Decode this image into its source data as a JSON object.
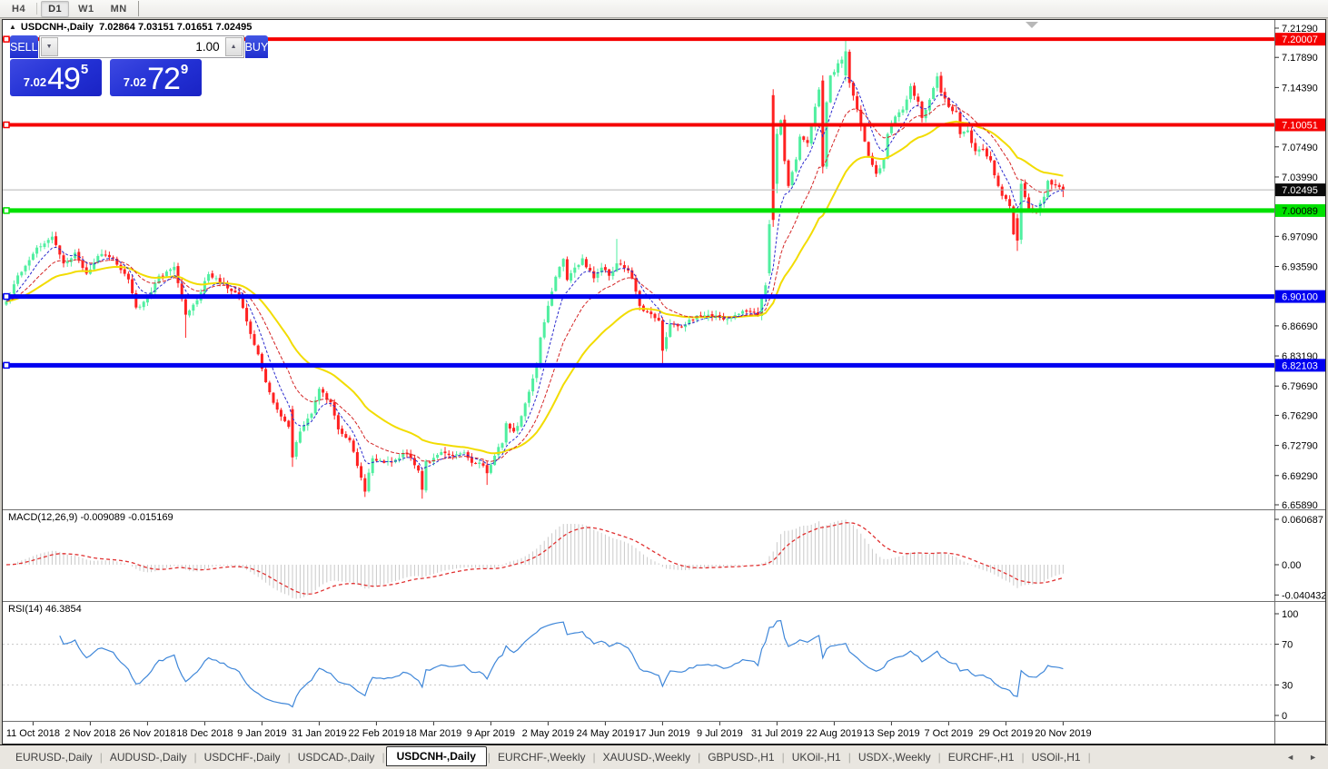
{
  "toolbar": {
    "timeframes": [
      {
        "label": "H4",
        "active": false
      },
      {
        "label": "D1",
        "active": true
      },
      {
        "label": "W1",
        "active": false
      },
      {
        "label": "MN",
        "active": false
      }
    ]
  },
  "chart_header": {
    "collapse_icon": "▲",
    "title": "USDCNH-,Daily",
    "ohlc": "7.02864 7.03151 7.01651 7.02495"
  },
  "trade_panel": {
    "sell_label": "SELL",
    "buy_label": "BUY",
    "volume": "1.00",
    "volume_dec_icon": "▼",
    "volume_inc_icon": "▲",
    "sell_price": {
      "prefix": "7.02",
      "big": "49",
      "sup": "5"
    },
    "buy_price": {
      "prefix": "7.02",
      "big": "72",
      "sup": "9"
    }
  },
  "indicators": {
    "macd_label": "MACD(12,26,9) -0.009089 -0.015169",
    "rsi_label": "RSI(14) 46.3854"
  },
  "tabs": {
    "scroll_left": "◄",
    "scroll_right": "►",
    "items": [
      {
        "label": "EURUSD-,Daily",
        "active": false
      },
      {
        "label": "AUDUSD-,Daily",
        "active": false
      },
      {
        "label": "USDCHF-,Daily",
        "active": false
      },
      {
        "label": "USDCAD-,Daily",
        "active": false
      },
      {
        "label": "USDCNH-,Daily",
        "active": true
      },
      {
        "label": "EURCHF-,Weekly",
        "active": false
      },
      {
        "label": "XAUUSD-,Weekly",
        "active": false
      },
      {
        "label": "GBPUSD-,H1",
        "active": false
      },
      {
        "label": "UKOil-,H1",
        "active": false
      },
      {
        "label": "USDX-,Weekly",
        "active": false
      },
      {
        "label": "EURCHF-,H1",
        "active": false
      },
      {
        "label": "USOil-,H1",
        "active": false
      }
    ]
  },
  "chart_data": {
    "type": "candlestick",
    "symbol": "USDCNH",
    "timeframe": "Daily",
    "title": "USDCNH-,Daily",
    "ohlc_current": {
      "open": 7.02864,
      "high": 7.03151,
      "low": 7.01651,
      "close": 7.02495
    },
    "price_range": {
      "top": 7.2129,
      "bottom": 6.6589
    },
    "colors": {
      "bull": "#50efa0",
      "bear": "#ff2121",
      "background": "#ffffff",
      "ma_fast": "#2a2ace",
      "ma_mid": "#d42525",
      "ma_slow": "#f2dc00",
      "macd_histogram": "#c9c9c9",
      "macd_signal": "#e03030",
      "rsi_line": "#3f87d9",
      "current_price_line": "#b4b4b4",
      "current_price_label_bg": "#0a0a0a"
    },
    "y_axis_ticks": [
      {
        "label": "7.21290",
        "value": 7.2129,
        "hidden": false
      },
      {
        "label": "7.17890",
        "value": 7.1789,
        "hidden": false
      },
      {
        "label": "7.14390",
        "value": 7.1439,
        "hidden": false
      },
      {
        "label": "7.10890",
        "value": 7.1089,
        "hidden": true
      },
      {
        "label": "7.07490",
        "value": 7.0749,
        "hidden": false
      },
      {
        "label": "7.03990",
        "value": 7.0399,
        "hidden": false
      },
      {
        "label": "7.00490",
        "value": 7.0049,
        "hidden": true
      },
      {
        "label": "6.97090",
        "value": 6.9709,
        "hidden": false
      },
      {
        "label": "6.93590",
        "value": 6.9359,
        "hidden": false
      },
      {
        "label": "6.90090",
        "value": 6.9009,
        "hidden": true
      },
      {
        "label": "6.86690",
        "value": 6.8669,
        "hidden": false
      },
      {
        "label": "6.83190",
        "value": 6.8319,
        "hidden": false
      },
      {
        "label": "6.79690",
        "value": 6.7969,
        "hidden": false
      },
      {
        "label": "6.76290",
        "value": 6.7629,
        "hidden": false
      },
      {
        "label": "6.72790",
        "value": 6.7279,
        "hidden": false
      },
      {
        "label": "6.69290",
        "value": 6.6929,
        "hidden": false
      },
      {
        "label": "6.65890",
        "value": 6.6589,
        "hidden": false
      }
    ],
    "levels": [
      {
        "value": "7.20007",
        "price": 7.20007,
        "color": "#f50000",
        "label_fg": "#ffffff",
        "thickness": 4
      },
      {
        "value": "7.10051",
        "price": 7.10051,
        "color": "#f50000",
        "label_fg": "#ffffff",
        "thickness": 4
      },
      {
        "value": "7.00089",
        "price": 7.00089,
        "color": "#00e100",
        "label_fg": "#000000",
        "thickness": 5
      },
      {
        "value": "6.90100",
        "price": 6.901,
        "color": "#0000f0",
        "label_fg": "#ffffff",
        "thickness": 5
      },
      {
        "value": "6.82103",
        "price": 6.82103,
        "color": "#0000f0",
        "label_fg": "#ffffff",
        "thickness": 5
      }
    ],
    "current_price": {
      "value": "7.02495",
      "price": 7.02495
    },
    "x_axis_labels": [
      "11 Oct 2018",
      "2 Nov 2018",
      "26 Nov 2018",
      "18 Dec 2018",
      "9 Jan 2019",
      "31 Jan 2019",
      "22 Feb 2019",
      "18 Mar 2019",
      "9 Apr 2019",
      "2 May 2019",
      "24 May 2019",
      "17 Jun 2019",
      "9 Jul 2019",
      "31 Jul 2019",
      "22 Aug 2019",
      "13 Sep 2019",
      "7 Oct 2019",
      "29 Oct 2019",
      "20 Nov 2019"
    ],
    "x_label_first_candle": 7,
    "x_label_step": 15,
    "candles_total": 278,
    "close_anchors": [
      [
        0,
        6.895
      ],
      [
        3,
        6.925
      ],
      [
        7,
        6.952
      ],
      [
        12,
        6.972
      ],
      [
        15,
        6.938
      ],
      [
        18,
        6.952
      ],
      [
        21,
        6.928
      ],
      [
        25,
        6.952
      ],
      [
        28,
        6.944
      ],
      [
        32,
        6.92
      ],
      [
        34,
        6.887
      ],
      [
        37,
        6.9
      ],
      [
        40,
        6.923
      ],
      [
        44,
        6.934
      ],
      [
        47,
        6.878
      ],
      [
        50,
        6.895
      ],
      [
        53,
        6.928
      ],
      [
        57,
        6.915
      ],
      [
        61,
        6.9
      ],
      [
        63,
        6.872
      ],
      [
        66,
        6.832
      ],
      [
        69,
        6.788
      ],
      [
        71,
        6.77
      ],
      [
        74,
        6.748
      ],
      [
        75,
        6.714
      ],
      [
        76,
        6.73
      ],
      [
        77,
        6.745
      ],
      [
        80,
        6.765
      ],
      [
        82,
        6.793
      ],
      [
        85,
        6.777
      ],
      [
        87,
        6.748
      ],
      [
        90,
        6.732
      ],
      [
        93,
        6.692
      ],
      [
        94,
        6.676
      ],
      [
        96,
        6.714
      ],
      [
        99,
        6.706
      ],
      [
        102,
        6.712
      ],
      [
        105,
        6.72
      ],
      [
        108,
        6.7
      ],
      [
        109,
        6.678
      ],
      [
        110,
        6.708
      ],
      [
        113,
        6.716
      ],
      [
        115,
        6.72
      ],
      [
        118,
        6.716
      ],
      [
        120,
        6.72
      ],
      [
        122,
        6.706
      ],
      [
        124,
        6.71
      ],
      [
        126,
        6.696
      ],
      [
        128,
        6.718
      ],
      [
        130,
        6.73
      ],
      [
        131,
        6.752
      ],
      [
        133,
        6.742
      ],
      [
        135,
        6.76
      ],
      [
        137,
        6.79
      ],
      [
        139,
        6.82
      ],
      [
        140,
        6.853
      ],
      [
        142,
        6.888
      ],
      [
        144,
        6.923
      ],
      [
        146,
        6.944
      ],
      [
        147,
        6.92
      ],
      [
        149,
        6.934
      ],
      [
        151,
        6.944
      ],
      [
        153,
        6.93
      ],
      [
        154,
        6.92
      ],
      [
        156,
        6.934
      ],
      [
        158,
        6.925
      ],
      [
        160,
        6.94
      ],
      [
        162,
        6.934
      ],
      [
        164,
        6.924
      ],
      [
        166,
        6.89
      ],
      [
        169,
        6.879
      ],
      [
        171,
        6.872
      ],
      [
        172,
        6.838
      ],
      [
        174,
        6.868
      ],
      [
        177,
        6.864
      ],
      [
        179,
        6.874
      ],
      [
        182,
        6.879
      ],
      [
        185,
        6.879
      ],
      [
        188,
        6.874
      ],
      [
        191,
        6.879
      ],
      [
        194,
        6.884
      ],
      [
        197,
        6.879
      ],
      [
        199,
        6.915
      ],
      [
        200,
        6.985
      ],
      [
        201,
        6.99
      ],
      [
        202,
        7.09
      ],
      [
        203,
        7.108
      ],
      [
        204,
        7.06
      ],
      [
        205,
        7.028
      ],
      [
        207,
        7.06
      ],
      [
        208,
        7.088
      ],
      [
        210,
        7.078
      ],
      [
        211,
        7.098
      ],
      [
        212,
        7.12
      ],
      [
        213,
        7.14
      ],
      [
        214,
        7.052
      ],
      [
        215,
        7.128
      ],
      [
        216,
        7.158
      ],
      [
        218,
        7.17
      ],
      [
        220,
        7.186
      ],
      [
        221,
        7.15
      ],
      [
        223,
        7.12
      ],
      [
        224,
        7.098
      ],
      [
        226,
        7.064
      ],
      [
        228,
        7.044
      ],
      [
        230,
        7.06
      ],
      [
        231,
        7.088
      ],
      [
        233,
        7.108
      ],
      [
        235,
        7.12
      ],
      [
        237,
        7.144
      ],
      [
        239,
        7.128
      ],
      [
        240,
        7.108
      ],
      [
        242,
        7.13
      ],
      [
        244,
        7.158
      ],
      [
        245,
        7.138
      ],
      [
        247,
        7.12
      ],
      [
        249,
        7.114
      ],
      [
        250,
        7.09
      ],
      [
        252,
        7.094
      ],
      [
        254,
        7.068
      ],
      [
        256,
        7.074
      ],
      [
        258,
        7.058
      ],
      [
        259,
        7.04
      ],
      [
        261,
        7.018
      ],
      [
        263,
        7.008
      ],
      [
        264,
        6.975
      ],
      [
        265,
        6.966
      ],
      [
        266,
        7.032
      ],
      [
        268,
        7.005
      ],
      [
        270,
        6.998
      ],
      [
        272,
        7.018
      ],
      [
        273,
        7.034
      ],
      [
        275,
        7.028
      ],
      [
        277,
        7.02495
      ]
    ],
    "candle_overrides": {
      "47": {
        "l": 6.853
      },
      "75": {
        "o": 6.77,
        "h": 6.774,
        "l": 6.703,
        "c": 6.714
      },
      "94": {
        "l": 6.668
      },
      "109": {
        "l": 6.666
      },
      "126": {
        "l": 6.682
      },
      "160": {
        "h": 6.968
      },
      "172": {
        "o": 6.873,
        "h": 6.877,
        "l": 6.822,
        "c": 6.838
      },
      "200": {
        "o": 6.928,
        "h": 6.99,
        "l": 6.925,
        "c": 6.985
      },
      "201": {
        "o": 7.135,
        "h": 7.142,
        "l": 6.982,
        "c": 6.99
      },
      "202": {
        "o": 7.032,
        "h": 7.096,
        "l": 7.021,
        "c": 7.09
      },
      "214": {
        "o": 7.152,
        "h": 7.158,
        "l": 7.044,
        "c": 7.052
      },
      "220": {
        "o": 7.158,
        "h": 7.199,
        "l": 7.151,
        "c": 7.186
      },
      "265": {
        "o": 6.992,
        "h": 6.997,
        "l": 6.954,
        "c": 6.966
      },
      "266": {
        "o": 6.967,
        "h": 7.037,
        "l": 6.962,
        "c": 7.032
      },
      "277": {
        "o": 7.02864,
        "h": 7.03151,
        "l": 7.01651,
        "c": 7.02495
      }
    },
    "moving_averages": [
      {
        "name": "fast",
        "period": 7,
        "color": "#2a2ace",
        "dash": "3,2",
        "width": 1
      },
      {
        "name": "mid",
        "period": 16,
        "color": "#d42525",
        "dash": "4,2",
        "width": 1
      },
      {
        "name": "slow",
        "period": 34,
        "color": "#f2dc00",
        "dash": "",
        "width": 2
      }
    ],
    "macd_panel": {
      "label": "MACD(12,26,9)",
      "values": "-0.009089 -0.015169",
      "fast": 12,
      "slow": 26,
      "signal": 9,
      "axis_ticks": [
        {
          "label": "0.060687",
          "value": 0.060687
        },
        {
          "label": "0.00",
          "value": 0
        },
        {
          "label": "-0.040432",
          "value": -0.040432
        }
      ]
    },
    "rsi_panel": {
      "label": "RSI(14)",
      "value": "46.3854",
      "period": 14,
      "axis_ticks": [
        {
          "label": "100",
          "value": 100
        },
        {
          "label": "70",
          "value": 70
        },
        {
          "label": "30",
          "value": 30
        },
        {
          "label": "0",
          "value": 0
        }
      ],
      "guides": [
        70,
        30
      ]
    }
  }
}
